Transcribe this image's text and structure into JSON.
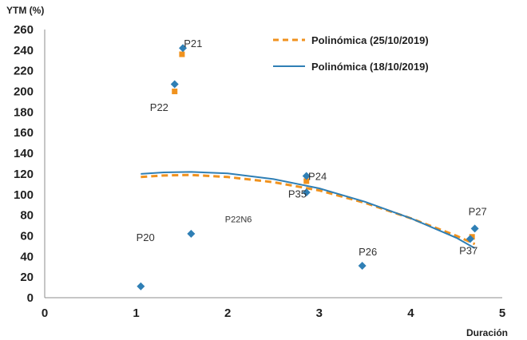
{
  "chart_data": {
    "type": "scatter",
    "ylabel": "YTM (%)",
    "xlabel": "Duración",
    "xlim": [
      0,
      5
    ],
    "ylim": [
      0,
      260
    ],
    "xticks": [
      0,
      1,
      2,
      3,
      4,
      5
    ],
    "yticks": [
      0,
      20,
      40,
      60,
      80,
      100,
      120,
      140,
      160,
      180,
      200,
      220,
      240,
      260
    ],
    "grid": false,
    "legend_position": "top-right",
    "colors": {
      "series_a": "#f0921e",
      "series_b": "#2f7fb5",
      "axis": "#8c8c8c"
    },
    "legend": [
      {
        "label": "Polinómica (25/10/2019)",
        "style": "dashed",
        "color": "#f0921e"
      },
      {
        "label": "Polinómica (18/10/2019)",
        "style": "solid",
        "color": "#2f7fb5"
      }
    ],
    "series": [
      {
        "marker": "square",
        "color": "#f0921e",
        "points": [
          {
            "x": 1.5,
            "y": 236
          },
          {
            "x": 1.42,
            "y": 200
          },
          {
            "x": 2.86,
            "y": 113
          },
          {
            "x": 4.67,
            "y": 59
          }
        ]
      },
      {
        "marker": "diamond",
        "color": "#2f7fb5",
        "points": [
          {
            "x": 1.05,
            "y": 11
          },
          {
            "x": 1.42,
            "y": 207
          },
          {
            "x": 1.51,
            "y": 242
          },
          {
            "x": 1.6,
            "y": 62
          },
          {
            "x": 2.86,
            "y": 118
          },
          {
            "x": 2.86,
            "y": 102
          },
          {
            "x": 3.47,
            "y": 31
          },
          {
            "x": 4.65,
            "y": 57
          },
          {
            "x": 4.7,
            "y": 67
          }
        ]
      }
    ],
    "trendlines": [
      {
        "color": "#f0921e",
        "style": "dashed",
        "points": [
          {
            "x": 1.05,
            "y": 117
          },
          {
            "x": 1.3,
            "y": 118.5
          },
          {
            "x": 1.6,
            "y": 119
          },
          {
            "x": 2.0,
            "y": 117
          },
          {
            "x": 2.5,
            "y": 112
          },
          {
            "x": 3.0,
            "y": 104
          },
          {
            "x": 3.5,
            "y": 92
          },
          {
            "x": 4.0,
            "y": 77
          },
          {
            "x": 4.5,
            "y": 60
          },
          {
            "x": 4.7,
            "y": 52
          }
        ]
      },
      {
        "color": "#2f7fb5",
        "style": "solid",
        "points": [
          {
            "x": 1.05,
            "y": 120
          },
          {
            "x": 1.3,
            "y": 121.5
          },
          {
            "x": 1.6,
            "y": 122
          },
          {
            "x": 2.0,
            "y": 120.5
          },
          {
            "x": 2.5,
            "y": 115
          },
          {
            "x": 3.0,
            "y": 106
          },
          {
            "x": 3.5,
            "y": 93
          },
          {
            "x": 4.0,
            "y": 77
          },
          {
            "x": 4.5,
            "y": 58
          },
          {
            "x": 4.7,
            "y": 48
          }
        ]
      }
    ],
    "annotations": [
      {
        "text": "P21",
        "x": 1.52,
        "y": 243
      },
      {
        "text": "P22",
        "x": 1.15,
        "y": 181
      },
      {
        "text": "P24",
        "x": 2.88,
        "y": 114
      },
      {
        "text": "P35",
        "x": 2.66,
        "y": 97
      },
      {
        "text": "P22N6",
        "x": 1.97,
        "y": 73
      },
      {
        "text": "P20",
        "x": 1.0,
        "y": 55
      },
      {
        "text": "P26",
        "x": 3.43,
        "y": 41
      },
      {
        "text": "P27",
        "x": 4.63,
        "y": 80
      },
      {
        "text": "P37",
        "x": 4.53,
        "y": 42
      }
    ]
  }
}
